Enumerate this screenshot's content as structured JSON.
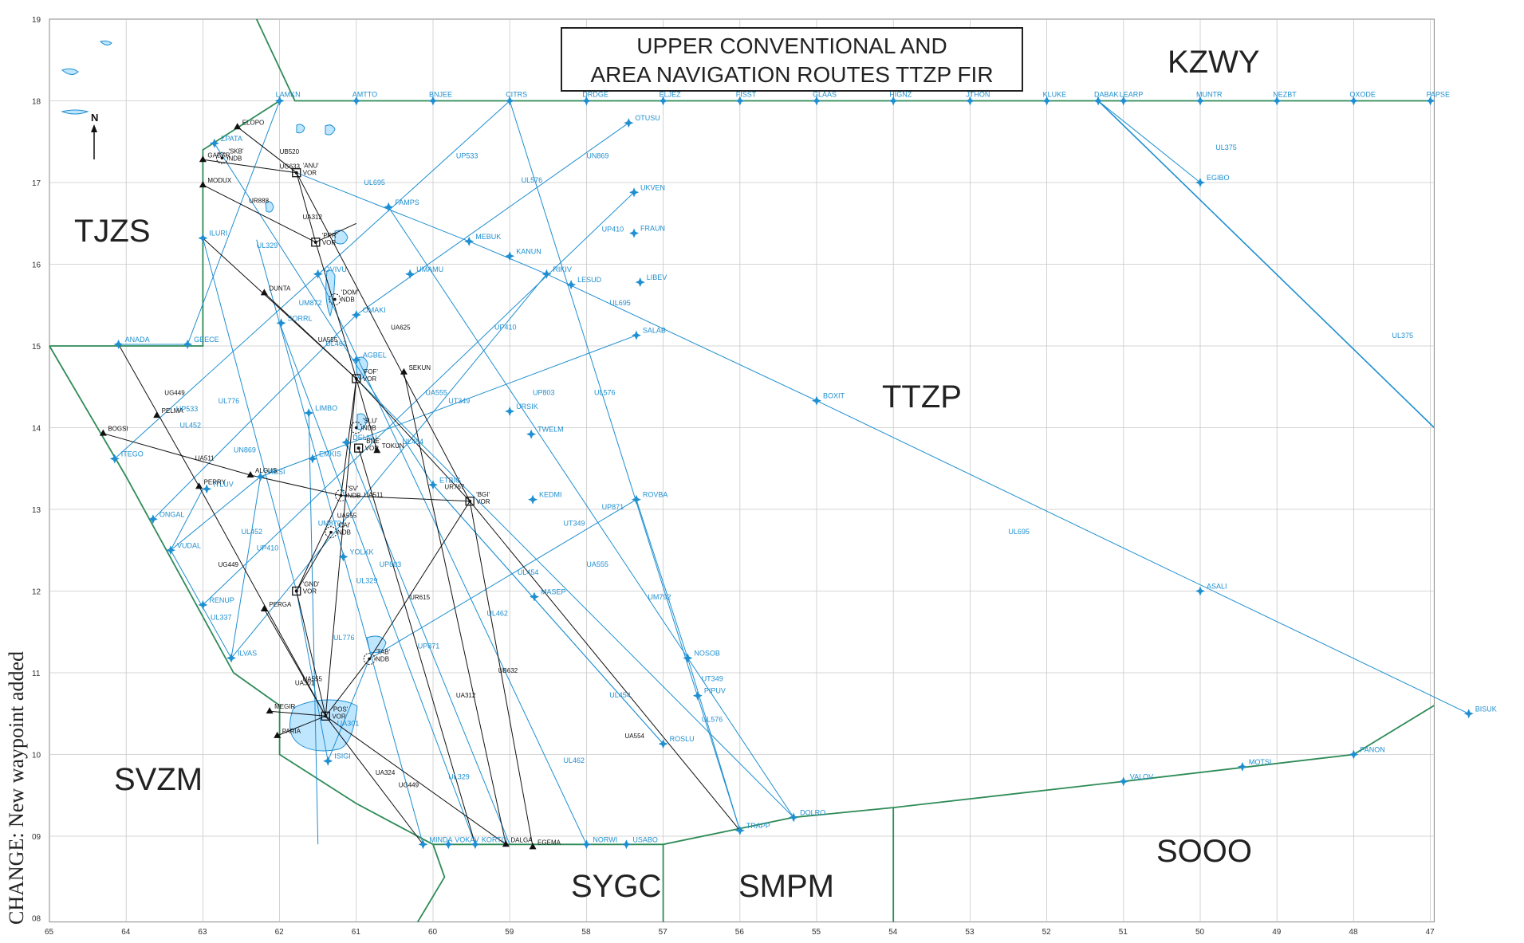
{
  "title": {
    "line1": "UPPER CONVENTIONAL AND",
    "line2": "AREA NAVIGATION ROUTES TTZP FIR"
  },
  "side_note": "CHANGE: New waypoint added",
  "fir_labels": [
    {
      "id": "kzwy",
      "text": "KZWY"
    },
    {
      "id": "tjzs",
      "text": "TJZS"
    },
    {
      "id": "ttzp",
      "text": "TTZP"
    },
    {
      "id": "svzm",
      "text": "SVZM"
    },
    {
      "id": "sygc",
      "text": "SYGC"
    },
    {
      "id": "smpm",
      "text": "SMPM"
    },
    {
      "id": "sooo",
      "text": "SOOO"
    }
  ],
  "lat_ticks": [
    "19",
    "18",
    "17",
    "16",
    "15",
    "14",
    "13",
    "12",
    "11",
    "10",
    "09",
    "08"
  ],
  "lon_ticks": [
    "65",
    "64",
    "63",
    "62",
    "61",
    "60",
    "59",
    "58",
    "57",
    "56",
    "55",
    "54",
    "53",
    "52",
    "51",
    "50",
    "49",
    "48",
    "47"
  ],
  "waypoints": [
    {
      "name": "LAMKN",
      "lon": 62.0,
      "lat": 18.0
    },
    {
      "name": "AMTTO",
      "lon": 61.0,
      "lat": 18.0
    },
    {
      "name": "BNJEE",
      "lon": 60.0,
      "lat": 18.0
    },
    {
      "name": "CITRS",
      "lon": 59.0,
      "lat": 18.0
    },
    {
      "name": "DRDGE",
      "lon": 58.0,
      "lat": 18.0
    },
    {
      "name": "ELJEZ",
      "lon": 57.0,
      "lat": 18.0
    },
    {
      "name": "FISST",
      "lon": 56.0,
      "lat": 18.0
    },
    {
      "name": "GLAAS",
      "lon": 55.0,
      "lat": 18.0
    },
    {
      "name": "HIGNZ",
      "lon": 54.0,
      "lat": 18.0
    },
    {
      "name": "JTHON",
      "lon": 53.0,
      "lat": 18.0
    },
    {
      "name": "KLUKE",
      "lon": 52.0,
      "lat": 18.0
    },
    {
      "name": "DABAK",
      "lon": 51.33,
      "lat": 18.0
    },
    {
      "name": "LEARP",
      "lon": 51.0,
      "lat": 18.0
    },
    {
      "name": "MUNTR",
      "lon": 50.0,
      "lat": 18.0
    },
    {
      "name": "NEZBT",
      "lon": 49.0,
      "lat": 18.0
    },
    {
      "name": "OXODE",
      "lon": 48.0,
      "lat": 18.0
    },
    {
      "name": "PAPSE",
      "lon": 47.0,
      "lat": 18.0
    },
    {
      "name": "OTUSU",
      "lon": 57.45,
      "lat": 17.73
    },
    {
      "name": "EGIBO",
      "lon": 50.0,
      "lat": 17.0
    },
    {
      "name": "ZPATA",
      "lon": 62.85,
      "lat": 17.48
    },
    {
      "name": "FAMPS",
      "lon": 60.58,
      "lat": 16.7
    },
    {
      "name": "UKVEN",
      "lon": 57.38,
      "lat": 16.88
    },
    {
      "name": "MEBUK",
      "lon": 59.53,
      "lat": 16.28
    },
    {
      "name": "KANUN",
      "lon": 59.0,
      "lat": 16.1
    },
    {
      "name": "FRAUN",
      "lon": 57.38,
      "lat": 16.38
    },
    {
      "name": "ILURI",
      "lon": 63.0,
      "lat": 16.32
    },
    {
      "name": "UMAMU",
      "lon": 60.3,
      "lat": 15.88
    },
    {
      "name": "RIKIV",
      "lon": 58.52,
      "lat": 15.88
    },
    {
      "name": "LESUD",
      "lon": 58.2,
      "lat": 15.75
    },
    {
      "name": "LIBEV",
      "lon": 57.3,
      "lat": 15.78
    },
    {
      "name": "OVIVU",
      "lon": 61.5,
      "lat": 15.88
    },
    {
      "name": "OMAKI",
      "lon": 61.0,
      "lat": 15.38
    },
    {
      "name": "SORRL",
      "lon": 61.98,
      "lat": 15.28
    },
    {
      "name": "ANADA",
      "lon": 64.1,
      "lat": 15.02
    },
    {
      "name": "GEECE",
      "lon": 63.2,
      "lat": 15.02
    },
    {
      "name": "SALAB",
      "lon": 57.35,
      "lat": 15.13
    },
    {
      "name": "AGBEL",
      "lon": 61.0,
      "lat": 14.83
    },
    {
      "name": "BOXIT",
      "lon": 55.0,
      "lat": 14.33
    },
    {
      "name": "URSIK",
      "lon": 59.0,
      "lat": 14.2
    },
    {
      "name": "LIMBO",
      "lon": 61.62,
      "lat": 14.18
    },
    {
      "name": "TWELM",
      "lon": 58.72,
      "lat": 13.92
    },
    {
      "name": "DELNU",
      "lon": 61.13,
      "lat": 13.82
    },
    {
      "name": "EMKIS",
      "lon": 61.57,
      "lat": 13.62
    },
    {
      "name": "ITEGO",
      "lon": 64.15,
      "lat": 13.62
    },
    {
      "name": "VIBSI",
      "lon": 62.25,
      "lat": 13.4
    },
    {
      "name": "ETBIG",
      "lon": 60.0,
      "lat": 13.3
    },
    {
      "name": "ROVBA",
      "lon": 57.35,
      "lat": 13.12
    },
    {
      "name": "KEDMI",
      "lon": 58.7,
      "lat": 13.12
    },
    {
      "name": "ITLUV",
      "lon": 62.95,
      "lat": 13.25
    },
    {
      "name": "ONGAL",
      "lon": 63.65,
      "lat": 12.88
    },
    {
      "name": "YOLKK",
      "lon": 61.17,
      "lat": 12.42
    },
    {
      "name": "VUDAL",
      "lon": 63.42,
      "lat": 12.5
    },
    {
      "name": "ASALI",
      "lon": 50.0,
      "lat": 12.0
    },
    {
      "name": "MASEP",
      "lon": 58.68,
      "lat": 11.93
    },
    {
      "name": "RENUP",
      "lon": 63.0,
      "lat": 11.83
    },
    {
      "name": "ILVAS",
      "lon": 62.63,
      "lat": 11.18
    },
    {
      "name": "NOSOB",
      "lon": 56.68,
      "lat": 11.18
    },
    {
      "name": "PIPUV",
      "lon": 56.55,
      "lat": 10.72
    },
    {
      "name": "BISUK",
      "lon": 46.5,
      "lat": 10.5
    },
    {
      "name": "ROSLU",
      "lon": 57.0,
      "lat": 10.13
    },
    {
      "name": "PANON",
      "lon": 48.0,
      "lat": 10.0
    },
    {
      "name": "ISIGI",
      "lon": 61.37,
      "lat": 9.92
    },
    {
      "name": "MOTSI",
      "lon": 49.45,
      "lat": 9.85
    },
    {
      "name": "VALOV",
      "lon": 51.0,
      "lat": 9.67
    },
    {
      "name": "DOLRO",
      "lon": 55.3,
      "lat": 9.23
    },
    {
      "name": "TRAPP",
      "lon": 56.0,
      "lat": 9.07
    },
    {
      "name": "MINDA",
      "lon": 60.13,
      "lat": 8.9
    },
    {
      "name": "VOKAV",
      "lon": 59.8,
      "lat": 8.9
    },
    {
      "name": "KORTO",
      "lon": 59.45,
      "lat": 8.9
    },
    {
      "name": "NORWI",
      "lon": 58.0,
      "lat": 8.9
    },
    {
      "name": "USABO",
      "lon": 57.48,
      "lat": 8.9
    }
  ],
  "black_points": [
    {
      "name": "ELOPO",
      "lon": 62.55,
      "lat": 17.68
    },
    {
      "name": "GABAR",
      "lon": 63.0,
      "lat": 17.28
    },
    {
      "name": "MODUX",
      "lon": 63.0,
      "lat": 16.97
    },
    {
      "name": "DUNTA",
      "lon": 62.2,
      "lat": 15.65
    },
    {
      "name": "SEKUN",
      "lon": 60.38,
      "lat": 14.68
    },
    {
      "name": "PELMA",
      "lon": 63.6,
      "lat": 14.15
    },
    {
      "name": "BOGSI",
      "lon": 64.3,
      "lat": 13.93
    },
    {
      "name": "TOKUN",
      "lon": 60.73,
      "lat": 13.72
    },
    {
      "name": "ALGUS",
      "lon": 62.38,
      "lat": 13.42
    },
    {
      "name": "PERRY",
      "lon": 63.05,
      "lat": 13.28
    },
    {
      "name": "PERGA",
      "lon": 62.2,
      "lat": 11.78
    },
    {
      "name": "MEGIR",
      "lon": 62.13,
      "lat": 10.53
    },
    {
      "name": "PARIA",
      "lon": 62.03,
      "lat": 10.23
    },
    {
      "name": "DALGA",
      "lon": 59.05,
      "lat": 8.9
    },
    {
      "name": "EGEMA",
      "lon": 58.7,
      "lat": 8.87
    }
  ],
  "navaids": [
    {
      "name": "'SKB'",
      "sub": "NDB",
      "lon": 62.75,
      "lat": 17.3
    },
    {
      "name": "'ANU'",
      "sub": "VOR",
      "lon": 61.78,
      "lat": 17.12
    },
    {
      "name": "'PPR'",
      "sub": "VOR",
      "lon": 61.53,
      "lat": 16.27
    },
    {
      "name": "'DOM'",
      "sub": "NDB",
      "lon": 61.28,
      "lat": 15.57
    },
    {
      "name": "'FOF'",
      "sub": "VOR",
      "lon": 61.0,
      "lat": 14.6
    },
    {
      "name": "'SLU'",
      "sub": "NDB",
      "lon": 61.0,
      "lat": 14.0
    },
    {
      "name": "'BNE'",
      "sub": "VOR",
      "lon": 60.97,
      "lat": 13.75
    },
    {
      "name": "'BGI'",
      "sub": "VOR",
      "lon": 59.52,
      "lat": 13.1
    },
    {
      "name": "'SV'",
      "sub": "NDB",
      "lon": 61.2,
      "lat": 13.17
    },
    {
      "name": "'CAI'",
      "sub": "NDB",
      "lon": 61.33,
      "lat": 12.72
    },
    {
      "name": "'GND'",
      "sub": "VOR",
      "lon": 61.78,
      "lat": 12.0
    },
    {
      "name": "'TAB'",
      "sub": "NDB",
      "lon": 60.83,
      "lat": 11.17
    },
    {
      "name": "'POS'",
      "sub": "VOR",
      "lon": 61.4,
      "lat": 10.47
    }
  ],
  "route_labels_blue": [
    {
      "text": "UL576",
      "lon": 58.85,
      "lat": 17.0
    },
    {
      "text": "UL576",
      "lon": 57.9,
      "lat": 14.4
    },
    {
      "text": "UL576",
      "lon": 56.5,
      "lat": 10.4
    },
    {
      "text": "UL375",
      "lon": 49.8,
      "lat": 17.4
    },
    {
      "text": "UL375",
      "lon": 47.5,
      "lat": 15.1
    },
    {
      "text": "UL695",
      "lon": 60.9,
      "lat": 16.97
    },
    {
      "text": "UL695",
      "lon": 57.7,
      "lat": 15.5
    },
    {
      "text": "UL695",
      "lon": 52.5,
      "lat": 12.7
    },
    {
      "text": "UP533",
      "lon": 59.7,
      "lat": 17.3
    },
    {
      "text": "UP533",
      "lon": 63.35,
      "lat": 14.2
    },
    {
      "text": "UN869",
      "lon": 58.0,
      "lat": 17.3
    },
    {
      "text": "UN869",
      "lon": 62.6,
      "lat": 13.7
    },
    {
      "text": "UP410",
      "lon": 57.8,
      "lat": 16.4
    },
    {
      "text": "UP410",
      "lon": 59.2,
      "lat": 15.2
    },
    {
      "text": "UP410",
      "lon": 62.3,
      "lat": 12.5
    },
    {
      "text": "UP803",
      "lon": 58.7,
      "lat": 14.4
    },
    {
      "text": "UP803",
      "lon": 60.7,
      "lat": 12.3
    },
    {
      "text": "UP871",
      "lon": 57.8,
      "lat": 13.0
    },
    {
      "text": "UP871",
      "lon": 60.2,
      "lat": 11.3
    },
    {
      "text": "UT349",
      "lon": 59.8,
      "lat": 14.3
    },
    {
      "text": "UT349",
      "lon": 58.3,
      "lat": 12.8
    },
    {
      "text": "UT349",
      "lon": 56.5,
      "lat": 10.9
    },
    {
      "text": "UA301",
      "lon": 61.25,
      "lat": 10.35
    },
    {
      "text": "UL462",
      "lon": 61.4,
      "lat": 15.0
    },
    {
      "text": "UL462",
      "lon": 59.3,
      "lat": 11.7
    },
    {
      "text": "UL462",
      "lon": 58.3,
      "lat": 9.9
    },
    {
      "text": "UL454",
      "lon": 60.4,
      "lat": 13.8
    },
    {
      "text": "UL454",
      "lon": 58.9,
      "lat": 12.2
    },
    {
      "text": "UL454",
      "lon": 57.7,
      "lat": 10.7
    },
    {
      "text": "UM792",
      "lon": 57.2,
      "lat": 11.9
    },
    {
      "text": "UL776",
      "lon": 62.8,
      "lat": 14.3
    },
    {
      "text": "UL776",
      "lon": 61.3,
      "lat": 11.4
    },
    {
      "text": "UL329",
      "lon": 62.3,
      "lat": 16.2
    },
    {
      "text": "UL329",
      "lon": 61.0,
      "lat": 12.1
    },
    {
      "text": "UL329",
      "lon": 59.8,
      "lat": 9.7
    },
    {
      "text": "UL337",
      "lon": 62.9,
      "lat": 11.65
    },
    {
      "text": "UL452",
      "lon": 63.3,
      "lat": 14.0
    },
    {
      "text": "UL452",
      "lon": 62.5,
      "lat": 12.7
    },
    {
      "text": "UM872",
      "lon": 61.75,
      "lat": 15.5
    },
    {
      "text": "UM872",
      "lon": 61.5,
      "lat": 12.8
    },
    {
      "text": "UA555",
      "lon": 60.1,
      "lat": 14.4
    },
    {
      "text": "UA555",
      "lon": 58.0,
      "lat": 12.3
    }
  ],
  "route_labels_black": [
    {
      "text": "UB520",
      "lon": 62.0,
      "lat": 17.35
    },
    {
      "text": "UG633",
      "lon": 62.0,
      "lat": 17.17
    },
    {
      "text": "UR888",
      "lon": 62.4,
      "lat": 16.75
    },
    {
      "text": "UA312",
      "lon": 61.7,
      "lat": 16.55
    },
    {
      "text": "UA312",
      "lon": 59.7,
      "lat": 10.7
    },
    {
      "text": "UA555",
      "lon": 61.5,
      "lat": 15.05
    },
    {
      "text": "UA625",
      "lon": 60.55,
      "lat": 15.2
    },
    {
      "text": "UA511",
      "lon": 63.1,
      "lat": 13.6
    },
    {
      "text": "UA511",
      "lon": 60.9,
      "lat": 13.15
    },
    {
      "text": "UR767",
      "lon": 59.85,
      "lat": 13.25
    },
    {
      "text": "UA555",
      "lon": 61.25,
      "lat": 12.9
    },
    {
      "text": "UG449",
      "lon": 63.5,
      "lat": 14.4
    },
    {
      "text": "UG449",
      "lon": 62.8,
      "lat": 12.3
    },
    {
      "text": "UG449",
      "lon": 60.45,
      "lat": 9.6
    },
    {
      "text": "UR615",
      "lon": 60.3,
      "lat": 11.9
    },
    {
      "text": "UA324",
      "lon": 60.75,
      "lat": 9.75
    },
    {
      "text": "UB632",
      "lon": 59.15,
      "lat": 11.0
    },
    {
      "text": "UA554",
      "lon": 57.5,
      "lat": 10.2
    },
    {
      "text": "UA555",
      "lon": 61.7,
      "lat": 10.9
    },
    {
      "text": "UA301",
      "lon": 61.8,
      "lat": 10.85
    }
  ]
}
